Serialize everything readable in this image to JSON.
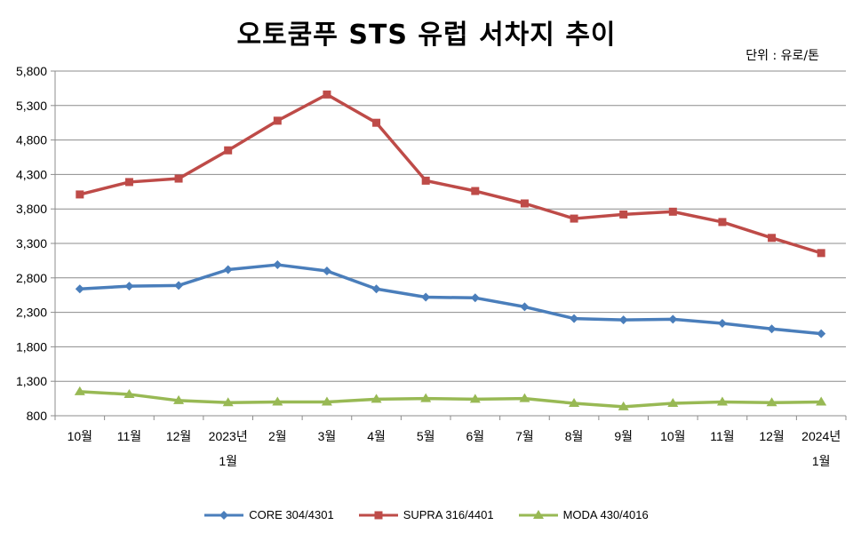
{
  "chart_data": {
    "type": "line",
    "title": "오토쿰푸 STS 유럽 서차지 추이",
    "unit": "단위 : 유로/톤",
    "categories": [
      [
        "10월"
      ],
      [
        "11월"
      ],
      [
        "12월"
      ],
      [
        "2023년",
        "1월"
      ],
      [
        "2월"
      ],
      [
        "3월"
      ],
      [
        "4월"
      ],
      [
        "5월"
      ],
      [
        "6월"
      ],
      [
        "7월"
      ],
      [
        "8월"
      ],
      [
        "9월"
      ],
      [
        "10월"
      ],
      [
        "11월"
      ],
      [
        "12월"
      ],
      [
        "2024년",
        "1월"
      ]
    ],
    "ylim": [
      800,
      5800
    ],
    "yticks": [
      "800",
      "1,300",
      "1,800",
      "2,300",
      "2,800",
      "3,300",
      "3,800",
      "4,300",
      "4,800",
      "5,300",
      "5,800"
    ],
    "grid": true,
    "legend_position": "bottom",
    "series": [
      {
        "name": "CORE 304/4301",
        "color": "#4a7ebb",
        "marker": "diamond",
        "values": [
          2640,
          2680,
          2690,
          2920,
          2990,
          2900,
          2640,
          2520,
          2510,
          2380,
          2210,
          2190,
          2200,
          2140,
          2060,
          1990
        ]
      },
      {
        "name": "SUPRA 316/4401",
        "color": "#be4b48",
        "marker": "square",
        "values": [
          4010,
          4190,
          4240,
          4650,
          5080,
          5460,
          5050,
          4210,
          4060,
          3880,
          3660,
          3720,
          3760,
          3610,
          3380,
          3160
        ]
      },
      {
        "name": "MODA 430/4016",
        "color": "#98b954",
        "marker": "triangle",
        "values": [
          1150,
          1110,
          1020,
          990,
          1000,
          1000,
          1040,
          1050,
          1040,
          1050,
          980,
          930,
          980,
          1000,
          990,
          1000
        ]
      }
    ]
  }
}
